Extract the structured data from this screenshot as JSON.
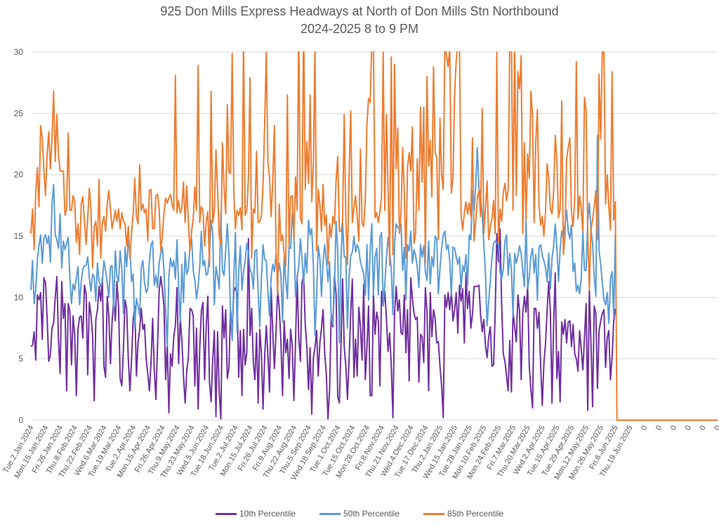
{
  "chart_data": {
    "type": "line",
    "title": "925 Don Mills Express Headways at North of Don Mills Stn Northbound",
    "subtitle": "2024-2025 8 to 9 PM",
    "xlabel": "",
    "ylabel": "",
    "ylim": [
      0,
      30
    ],
    "yticks": [
      0,
      5,
      10,
      15,
      20,
      25,
      30
    ],
    "grid": true,
    "legend_position": "bottom",
    "label_interval": 9,
    "xtick_labels": [
      "Tue.2.Jan.2024",
      "Mon.15.Jan.2024",
      "Fri.26.Jan.2024",
      "Thu.8.Feb.2024",
      "Thu.22.Feb.2024",
      "Wed.6.Mar.2024",
      "Tue.19.Mar.2024",
      "Tue.2.Apr.2024",
      "Mon.15.Apr.2024",
      "Fri.26.Apr.2024",
      "Thu.9.May.2024",
      "Thu.23.May.2024",
      "Wed.5.Jun.2024",
      "Tue.18.Jun.2024",
      "Tue.2.Jul.2024",
      "Mon.15.Jul.2024",
      "Fri.26.Jul.2024",
      "Fri.9.Aug.2024",
      "Thu.22.Aug.2024",
      "Thu.5.Sep.2024",
      "Wed.18.Sep.2024",
      "Tue.1.Oct.2024",
      "Tue.15.Oct.2024",
      "Mon.28.Oct.2024",
      "Fri.8.Nov.2024",
      "Thu.21.Nov.2024",
      "Wed.4.Dec.2024",
      "Tue.17.Dec.2024",
      "Thu.2.Jan.2025",
      "Wed.15.Jan.2025",
      "Tue.28.Jan.2025",
      "Mon.10.Feb.2025",
      "Mon.24.Feb.2025",
      "Fri.7.Mar.2025",
      "Thu.20.Mar.2025",
      "Wed.2.Apr.2025",
      "Tue.15.Apr.2025",
      "Tue.29.Apr.2025",
      "Mon.12.May.2025",
      "Mon.26.May.2025",
      "Fri.6.Jun.2025",
      "Thu.19.Jun.2025",
      "0",
      "0",
      "0",
      "0",
      "0",
      "0",
      "0"
    ],
    "num_data_points": 361,
    "num_trailing_zero_points": 63,
    "series": [
      {
        "name": "10th Percentile",
        "color": "#7030A0",
        "values": [
          6,
          6.1,
          7.2,
          4.9,
          10.2,
          9.8,
          10.4,
          6.6,
          11.6,
          11.5,
          11.2,
          8.3,
          4.8,
          5.3,
          7.5,
          7.9,
          10,
          11.7,
          6.5,
          3.8,
          11.3,
          8.3,
          9.5,
          2.4,
          9.5,
          8.9,
          4.5,
          8.5,
          8.8,
          6.9,
          2.0,
          7.4,
          8.4,
          8.5,
          6.7,
          11.0,
          10.3,
          3.7,
          9.6,
          8.6,
          6.9,
          1.6,
          8.2,
          9.0,
          10.9,
          9.7,
          11.6,
          7.7,
          4.4,
          3.5,
          10.1,
          8.5,
          4.6,
          8.0,
          9.8,
          8.1,
          11.3,
          9.3,
          3.4,
          2.8,
          5.8,
          9.8,
          9.1,
          5.0,
          2.4,
          5.0,
          7.7,
          8.2,
          9.3,
          3.6,
          6.3,
          7.4,
          9.1,
          7.4,
          7.8,
          5.0,
          3.8,
          2.4,
          4.7,
          8.3,
          4.1,
          1.7,
          6.0,
          10.5,
          11.7,
          11.3,
          10.7,
          9.2,
          3.3,
          6.2,
          0.6,
          5.4,
          4.4,
          6.8,
          7.7,
          10.8,
          4.6,
          8.3,
          6.5,
          3.6,
          1.4,
          4.0,
          5.1,
          9.1,
          8.1,
          9.0,
          8.5,
          2.8,
          7.5,
          0.9,
          5.8,
          8.9,
          9.6,
          3.3,
          7.6,
          10.1,
          3.1,
          1.5,
          4.9,
          7.3,
          0.3,
          7.2,
          2.3,
          6.0,
          0.1,
          9.3,
          6.7,
          9.0,
          3.4,
          4.3,
          9.0,
          7.1,
          10.5,
          10.8,
          10.2,
          3.5,
          7.3,
          2.0,
          7.4,
          4.5,
          5.5,
          14.8,
          11.9,
          6.9,
          9.1,
          4.8,
          3.3,
          7.1,
          1.4,
          7.4,
          5.4,
          0.9,
          5.2,
          7.7,
          5.3,
          2.3,
          10.8,
          7.1,
          4.2,
          7.2,
          10.7,
          11.1,
          9.1,
          6.5,
          2.0,
          8.1,
          5.5,
          6.6,
          3.4,
          7.4,
          6.1,
          1.6,
          6.3,
          11.8,
          6.7,
          4.8,
          11.2,
          11.8,
          7.8,
          5.9,
          3.7,
          2.5,
          5.9,
          0.5,
          5.1,
          5.9,
          7.3,
          3.6,
          6.3,
          7.5,
          9.0,
          5.4,
          3.7,
          0.1,
          2.5,
          8.7,
          7.6,
          11.8,
          10.3,
          4.6,
          1.9,
          1.4,
          6.0,
          11.5,
          6.0,
          4.4,
          1.7,
          4.9,
          8.8,
          11.5,
          3.5,
          6.6,
          3.6,
          9.2,
          7.6,
          4.9,
          11.1,
          3.3,
          1.5,
          5.9,
          9.3,
          2.0,
          2.0,
          10.4,
          7.0,
          8.8,
          8.1,
          2.8,
          10.5,
          9.3,
          10.5,
          8.3,
          5.6,
          7.1,
          4.4,
          0.2,
          8.6,
          5.4,
          10.9,
          8.9,
          9.8,
          7.1,
          7.0,
          10.2,
          5.5,
          9.0,
          3.2,
          11.6,
          9.9,
          8.7,
          8.2,
          8.4,
          3.1,
          7.0,
          6.8,
          4.7,
          3.9,
          10.8,
          8.8,
          2.4,
          10.4,
          6.8,
          9.0,
          8.3,
          6.3,
          6.4,
          4.4,
          2.8,
          0.2,
          10.2,
          9.2,
          10.4,
          9.0,
          10.5,
          8.1,
          8.2,
          9.0,
          10.4,
          7.1,
          11.0,
          9.7,
          10.7,
          6.3,
          12.0,
          9.1,
          10.5,
          7.5,
          8.6,
          10.9,
          10.9,
          10.9,
          11.0,
          8.6,
          7.2,
          8.3,
          8.2,
          6.1,
          5.1,
          6.8,
          7.6,
          4.4,
          4.5,
          8.7,
          15.2,
          12.9,
          15.6,
          9.3,
          5.4,
          4.8,
          3.6,
          2.4,
          6.5,
          2.3,
          10.4,
          8.9,
          7.6,
          6.4,
          10.2,
          8.9,
          3.3,
          8.8,
          10.1,
          8.8,
          11.0,
          4.4,
          2.5,
          1.0,
          9.1,
          9.1,
          7.5,
          8.8,
          4.5,
          8.2,
          1.2,
          4.6,
          6.2,
          9.0,
          11.3,
          8.8,
          1.4,
          7.8,
          12.0,
          3.4,
          5.6,
          1.5,
          8.0,
          7.0,
          8.2,
          6.3,
          8.0,
          8.1,
          8.6,
          6.0,
          7.8,
          5.4,
          5.0,
          4.0,
          7.3,
          5.8,
          4.1,
          6.7,
          9.5,
          0.8,
          10.6,
          6.3,
          1.1,
          9.3,
          8.7,
          2.6,
          7.3,
          2.1,
          8.1,
          8.7,
          9.0,
          4.3,
          6.7,
          7.3,
          3.3,
          5.1,
          8.1,
          9.1
        ],
        "trailing_zero_shown": false
      },
      {
        "name": "50th Percentile",
        "color": "#5B9BD5",
        "values": [
          10.6,
          13.0,
          9.5,
          10.7,
          13.1,
          14.2,
          15.1,
          12.8,
          14.8,
          15.1,
          14.4,
          15.0,
          12.9,
          17.6,
          19.2,
          15.1,
          14.7,
          14.0,
          16.8,
          12.4,
          14.6,
          13.9,
          14.4,
          14.9,
          11.6,
          9.5,
          8.6,
          11.1,
          10.6,
          11.6,
          12.5,
          9.4,
          11.3,
          12.3,
          12.6,
          12.6,
          13.3,
          11.6,
          10.5,
          11.9,
          11.7,
          9.7,
          12.8,
          11.3,
          10.9,
          11.3,
          13.0,
          12.2,
          11.2,
          10.0,
          12.5,
          12.6,
          8.9,
          13.8,
          11.7,
          11.3,
          13.8,
          12.3,
          8.7,
          14.1,
          12.5,
          14.6,
          14.0,
          11.3,
          11.9,
          7.6,
          9.9,
          9.3,
          8.5,
          12.5,
          13.0,
          11.2,
          10.4,
          10.7,
          13.0,
          14.3,
          14.6,
          11.0,
          11.8,
          8.5,
          10.8,
          12.8,
          13.6,
          14.1,
          12.1,
          8.9,
          6.0,
          11.7,
          13.2,
          12.5,
          13.0,
          11.5,
          14.7,
          10.8,
          8.0,
          12.7,
          9.6,
          13.7,
          11.9,
          12.3,
          14.1,
          14.8,
          12.2,
          11.4,
          9.9,
          10.9,
          12.5,
          15.4,
          12.6,
          13.0,
          11.8,
          12.0,
          13.6,
          16.3,
          15.2,
          9.4,
          12.5,
          11.7,
          10.7,
          16.9,
          12.2,
          11.8,
          13.8,
          16.0,
          13.4,
          8.5,
          6.5,
          11.7,
          15.3,
          7.2,
          12.1,
          9.0,
          14.2,
          10.6,
          12.1,
          13.0,
          14.4,
          13.7,
          12.2,
          12.0,
          10.7,
          13.8,
          13.9,
          10.3,
          7.6,
          11.6,
          14.3,
          13.1,
          13.0,
          10.5,
          8.5,
          11.7,
          12.7,
          12.1,
          13.5,
          11.6,
          12.8,
          11.9,
          8.0,
          13.3,
          11.4,
          9.9,
          14.1,
          14.0,
          16.8,
          15.5,
          10.1,
          11.6,
          12.5,
          14.8,
          13.2,
          11.1,
          13.6,
          12.0,
          16.3,
          15.1,
          15.6,
          12.6,
          6.9,
          10.1,
          14.2,
          13.2,
          10.1,
          8.5,
          12.9,
          14.3,
          13.0,
          11.3,
          12.9,
          8.3,
          7.8,
          10.7,
          16.2,
          13.8,
          6.3,
          13.1,
          16.1,
          13.3,
          13.3,
          7.5,
          11.7,
          13.4,
          13.7,
          15.0,
          13.7,
          14.3,
          13.9,
          12.9,
          12.4,
          11.9,
          10.2,
          14.3,
          9.8,
          13.9,
          16.0,
          10.2,
          13.3,
          14.0,
          10.2,
          14.9,
          15.3,
          9.3,
          11.1,
          13.2,
          14.9,
          13.7,
          12.3,
          8.6,
          14.3,
          16.0,
          15.7,
          15.6,
          16.0,
          12.2,
          14.1,
          9.8,
          13.3,
          14.3,
          13.8,
          15.4,
          12.8,
          13.9,
          13.4,
          12.5,
          10.8,
          14.3,
          13.3,
          14.2,
          12.1,
          11.4,
          14.6,
          11.1,
          13.3,
          12.5,
          15.0,
          14.8,
          10.3,
          12.4,
          14.0,
          15.1,
          15.4,
          13.9,
          14.3,
          13.0,
          10.1,
          14.1,
          14.0,
          13.3,
          12.7,
          13.3,
          10.7,
          12.6,
          12.1,
          13.5,
          11.0,
          15.1,
          14.7,
          18.7,
          17.1,
          19.1,
          22.2,
          18.9,
          18.1,
          16.8,
          14.3,
          12.0,
          7.7,
          9.7,
          12.5,
          11.4,
          13.2,
          14.4,
          14.6,
          14.4,
          14.6,
          12.1,
          11.5,
          12.3,
          14.6,
          15.1,
          11.8,
          13.6,
          12.3,
          8.4,
          13.6,
          12.8,
          13.4,
          14.2,
          13.6,
          12.2,
          10.9,
          16.2,
          10.7,
          11.7,
          13.4,
          14.0,
          12.0,
          13.5,
          9.8,
          14.1,
          14.3,
          13.4,
          13.0,
          12.4,
          11.3,
          13.6,
          10.7,
          13.2,
          14.2,
          16.0,
          14.0,
          11.3,
          13.9,
          15.4,
          14.8,
          16.0,
          17.1,
          15.4,
          14.8,
          15.9,
          12.1,
          10.6,
          12.8,
          10.5,
          11.0,
          10.3,
          11.5,
          15.4,
          12.2,
          12.2,
          16.2,
          17.7,
          15.6,
          14.4,
          11.7,
          10.1,
          23.2,
          13.8,
          12.7,
          11.2,
          9.8,
          9.4,
          10.4,
          7.9,
          11.5,
          12.1,
          8.5,
          15.2
        ],
        "trailing_zero_shown": false
      },
      {
        "name": "85th Percentile",
        "color": "#ED7D31",
        "values": [
          15.2,
          17.2,
          13.9,
          18.6,
          20.6,
          17.4,
          24.0,
          23.0,
          20.4,
          18.3,
          21.7,
          23.5,
          20.5,
          22.9,
          26.8,
          21.1,
          24.9,
          21.6,
          20.3,
          20.3,
          20.3,
          16.7,
          17.2,
          23.4,
          17.1,
          17.1,
          15.3,
          18.3,
          17.8,
          14.5,
          16.0,
          13.5,
          17.6,
          18.2,
          16.2,
          14.3,
          16.5,
          18.9,
          17.2,
          12.4,
          15.8,
          16.2,
          14.2,
          19.6,
          13.2,
          16.0,
          16.6,
          15.4,
          17.6,
          18.7,
          17.2,
          15.6,
          16.3,
          17.1,
          16.2,
          17.2,
          15.6,
          16.9,
          16.2,
          16.0,
          14.2,
          15.8,
          13.2,
          15.2,
          16.9,
          19.7,
          16.6,
          16.0,
          20.8,
          17.1,
          17.6,
          16.9,
          17.2,
          14.6,
          18.7,
          18.8,
          15.6,
          15.6,
          18.3,
          17.3,
          18.4,
          17.3,
          13.8,
          15.1,
          16.9,
          18.1,
          17.7,
          18.1,
          18.4,
          17.6,
          17.1,
          28.1,
          16.9,
          17.9,
          16.9,
          17.3,
          19.4,
          16.1,
          19.1,
          16.2,
          13.8,
          15.4,
          16.4,
          19.0,
          17.1,
          28.9,
          16.1,
          17.4,
          17.1,
          14.2,
          16.2,
          17.0,
          12.5,
          26.8,
          16.1,
          17.0,
          22.0,
          18.8,
          15.0,
          14.3,
          22.6,
          19.0,
          16.8,
          25.7,
          20.2,
          20.1,
          29.9,
          18.5,
          15.6,
          17.1,
          16.7,
          15.5,
          17.3,
          15.5,
          31.0,
          16.7,
          17.1,
          19.7,
          27.9,
          13.2,
          17.2,
          16.9,
          21.9,
          16.1,
          16.2,
          16.6,
          19.2,
          24.2,
          30.0,
          21.0,
          19.8,
          16.6,
          19.5,
          24.0,
          14.1,
          10.2,
          17.6,
          14.6,
          15.1,
          13.6,
          12.5,
          26.5,
          14.2,
          18.2,
          18.3,
          14.8,
          19.8,
          17.1,
          32.0,
          16.5,
          16.0,
          33.0,
          18.8,
          22.7,
          19.3,
          26.5,
          17.8,
          20.9,
          30.4,
          13.8,
          18.8,
          17.6,
          15.4,
          16.2,
          19.2,
          15.9,
          16.7,
          12.7,
          16.0,
          14.9,
          16.6,
          16.0,
          19.5,
          21.5,
          15.4,
          15.4,
          16.2,
          24.9,
          16.5,
          12.7,
          20.0,
          25.2,
          16.1,
          17.3,
          18.3,
          16.6,
          14.6,
          22.1,
          16.0,
          15.8,
          18.0,
          24.1,
          26.2,
          25.9,
          30.7,
          31.0,
          16.5,
          16.9,
          16.1,
          17.0,
          18.2,
          30.0,
          17.1,
          24.9,
          19.0,
          12.6,
          29.6,
          13.5,
          29.0,
          20.5,
          23.8,
          15.2,
          16.9,
          22.2,
          18.4,
          13.2,
          25.7,
          20.6,
          21.8,
          20.3,
          23.9,
          14.4,
          15.3,
          21.3,
          17.1,
          25.5,
          19.4,
          25.5,
          12.8,
          28.0,
          20.7,
          22.8,
          18.2,
          28.8,
          21.8,
          21.4,
          14.7,
          24.6,
          20.0,
          18.8,
          30.8,
          29.7,
          28.8,
          30.4,
          18.5,
          19.7,
          26.5,
          29.3,
          30.9,
          30.8,
          16.6,
          15.5,
          16.9,
          17.8,
          16.8,
          17.7,
          16.6,
          23.0,
          14.6,
          16.2,
          18.1,
          18.7,
          16.6,
          25.4,
          15.2,
          17.3,
          19.5,
          14.7,
          16.7,
          15.8,
          16.4,
          17.9,
          15.2,
          30.0,
          14.5,
          17.2,
          16.2,
          18.6,
          19.3,
          17.9,
          18.8,
          31.2,
          31.0,
          17.1,
          30.8,
          18.3,
          28.4,
          27.0,
          29.7,
          15.2,
          22.6,
          16.3,
          21.7,
          19.7,
          26.8,
          24.8,
          16.1,
          22.7,
          25.3,
          17.5,
          15.9,
          16.6,
          15.0,
          16.9,
          20.9,
          19.7,
          17.2,
          16.8,
          18.6,
          23.2,
          21.2,
          16.5,
          17.2,
          26.0,
          13.5,
          15.0,
          21.3,
          22.2,
          23.0,
          16.9,
          15.8,
          23.5,
          18.0,
          29.2,
          16.4,
          18.3,
          17.2,
          15.4,
          26.3,
          25.3,
          15.2,
          10.6,
          15.5,
          16.3,
          17.4,
          18.7,
          14.7,
          28.2,
          22.9,
          30.0,
          30.1,
          17.6,
          20.0,
          17.4,
          15.5,
          28.4,
          16.3,
          17.8
        ],
        "trailing_zero_shown": true
      }
    ]
  },
  "legend": {
    "items": [
      {
        "label": "10th Percentile",
        "color": "#7030A0"
      },
      {
        "label": "50th Percentile",
        "color": "#5B9BD5"
      },
      {
        "label": "85th Percentile",
        "color": "#ED7D31"
      }
    ]
  }
}
